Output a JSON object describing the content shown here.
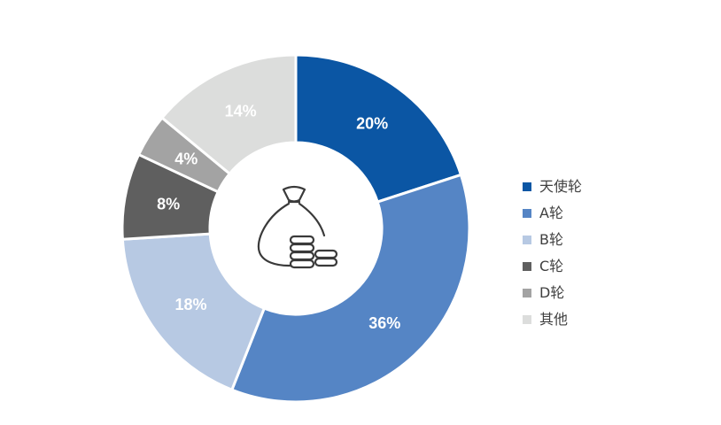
{
  "chart_data": {
    "type": "pie",
    "variant": "donut",
    "start_angle_deg": 0,
    "direction": "clockwise",
    "legend_position": "right",
    "center_icon": "money-bag-with-coins-icon",
    "categories": [
      "天使轮",
      "A轮",
      "B轮",
      "C轮",
      "D轮",
      "其他"
    ],
    "values": [
      20,
      36,
      18,
      8,
      4,
      14
    ],
    "labels": [
      "20%",
      "36%",
      "18%",
      "8%",
      "4%",
      "14%"
    ],
    "colors": [
      "#0B56A4",
      "#5585C5",
      "#B7C9E3",
      "#5F5F5F",
      "#A3A3A3",
      "#DCDDDC"
    ],
    "label_colors": [
      "#ffffff",
      "#ffffff",
      "#ffffff",
      "#ffffff",
      "#ffffff",
      "#ffffff"
    ]
  }
}
